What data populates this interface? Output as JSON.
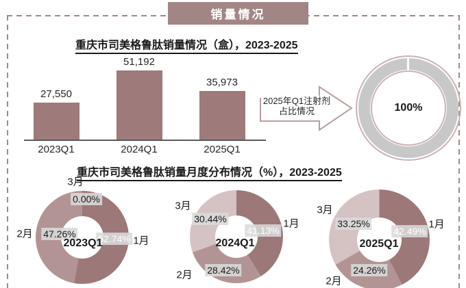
{
  "banner": {
    "title": "销量情况"
  },
  "section1": {
    "title": "重庆市司美格鲁肽销量情况（盒），2023-2025"
  },
  "section2": {
    "title": "重庆市司美格鲁肽销量月度分布情况（%），2023-2025"
  },
  "arrow": {
    "line1": "2025年Q1注射剂",
    "line2": "占比情况"
  },
  "colors": {
    "accent": "#a28585",
    "dash": "#a28989",
    "bar": "#9e7a7a",
    "slice_jan": "#9c7878",
    "slice_feb": "#b39494",
    "slice_mar": "#d5c3c3",
    "ring_gray": "#c8c8c8",
    "ring_outline": "#ccb1b1",
    "arrow_outline": "#b89d9d",
    "axis": "#595959"
  },
  "chart_data": [
    {
      "id": "quarterly-sales",
      "type": "bar",
      "title": "重庆市司美格鲁肽销量情况（盒），2023-2025",
      "categories": [
        "2023Q1",
        "2024Q1",
        "2025Q1"
      ],
      "values": [
        27550,
        51192,
        35973
      ],
      "value_labels": [
        "27,550",
        "51,192",
        "35,973"
      ],
      "ylim": [
        0,
        51192
      ],
      "grid": false,
      "data_labels": true
    },
    {
      "id": "injection-share-ring",
      "type": "pie",
      "title": "2025年Q1注射剂占比情况",
      "categories": [
        "注射剂"
      ],
      "values": [
        100
      ],
      "center_label": "100%"
    },
    {
      "id": "monthly-2023q1",
      "type": "pie",
      "title": "2023Q1",
      "categories": [
        "1月",
        "2月",
        "3月"
      ],
      "values": [
        52.74,
        47.26,
        0.0
      ],
      "labels": [
        "52.74%",
        "47.26%",
        "0.00%"
      ],
      "center_label": "2023Q1"
    },
    {
      "id": "monthly-2024q1",
      "type": "pie",
      "title": "2024Q1",
      "categories": [
        "1月",
        "2月",
        "3月"
      ],
      "values": [
        41.13,
        28.42,
        30.44
      ],
      "labels": [
        "41.13%",
        "28.42%",
        "30.44%"
      ],
      "center_label": "2024Q1"
    },
    {
      "id": "monthly-2025q1",
      "type": "pie",
      "title": "2025Q1",
      "categories": [
        "1月",
        "2月",
        "3月"
      ],
      "values": [
        42.49,
        24.26,
        33.25
      ],
      "labels": [
        "42.49%",
        "24.26%",
        "33.25%"
      ],
      "center_label": "2025Q1"
    }
  ]
}
